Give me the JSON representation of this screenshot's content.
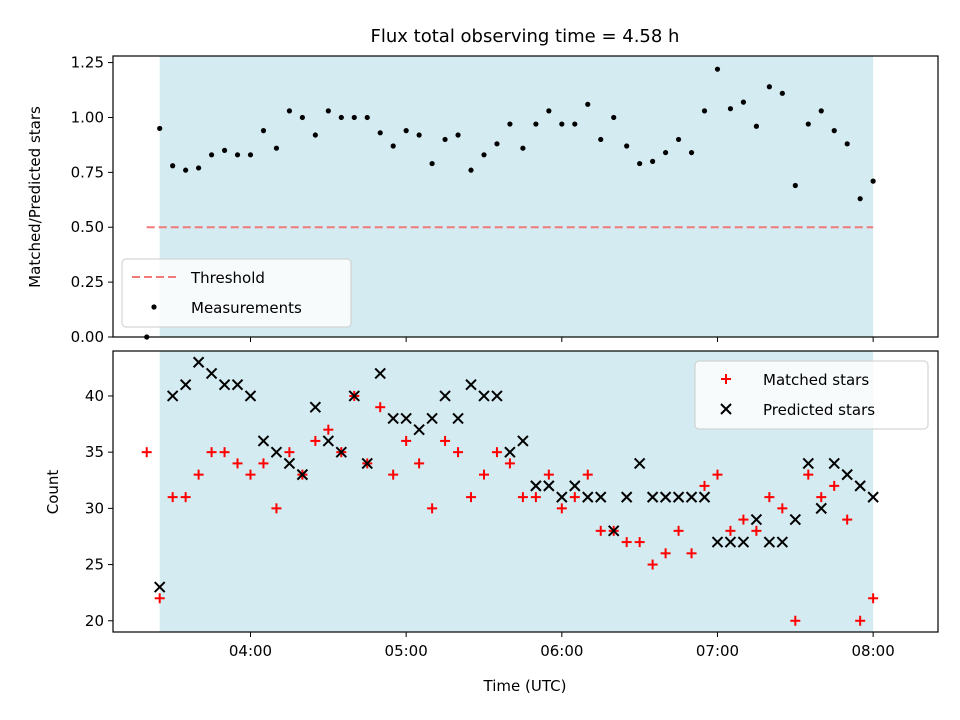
{
  "chart_data": [
    {
      "type": "scatter",
      "title": "Flux total observing time = 4.58 h",
      "ylabel": "Matched/Predicted stars",
      "xlabel": "",
      "ylim": [
        0,
        1.28
      ],
      "yticks": [
        "0.00",
        "0.25",
        "0.50",
        "0.75",
        "1.00",
        "1.25"
      ],
      "ytick_values": [
        0,
        0.25,
        0.5,
        0.75,
        1.0,
        1.25
      ],
      "observing_window": {
        "start": "03:25",
        "end": "08:00",
        "color": "#d4ebf1"
      },
      "threshold": {
        "name": "Threshold",
        "value": 0.5,
        "x_start": "03:20",
        "x_end": "08:00",
        "color": "#f07a7a"
      },
      "legend": {
        "position": "lower-left",
        "entries": [
          "Threshold",
          "Measurements"
        ]
      },
      "series": [
        {
          "name": "Measurements",
          "color": "#000000",
          "marker": "dot",
          "x": [
            "03:20",
            "03:25",
            "03:30",
            "03:35",
            "03:40",
            "03:45",
            "03:50",
            "03:55",
            "04:00",
            "04:05",
            "04:10",
            "04:15",
            "04:20",
            "04:25",
            "04:30",
            "04:35",
            "04:40",
            "04:45",
            "04:50",
            "04:55",
            "05:00",
            "05:05",
            "05:10",
            "05:15",
            "05:20",
            "05:25",
            "05:30",
            "05:35",
            "05:40",
            "05:45",
            "05:50",
            "05:55",
            "06:00",
            "06:05",
            "06:10",
            "06:15",
            "06:20",
            "06:25",
            "06:30",
            "06:35",
            "06:40",
            "06:45",
            "06:50",
            "06:55",
            "07:00",
            "07:05",
            "07:10",
            "07:15",
            "07:20",
            "07:25",
            "07:30",
            "07:35",
            "07:40",
            "07:45",
            "07:50",
            "07:55",
            "08:00"
          ],
          "y": [
            0.0,
            0.95,
            0.78,
            0.76,
            0.77,
            0.83,
            0.85,
            0.83,
            0.83,
            0.94,
            0.86,
            1.03,
            1.0,
            0.92,
            1.03,
            1.0,
            1.0,
            1.0,
            0.93,
            0.87,
            0.94,
            0.92,
            0.79,
            0.9,
            0.92,
            0.76,
            0.83,
            0.88,
            0.97,
            0.86,
            0.97,
            1.03,
            0.97,
            0.97,
            1.06,
            0.9,
            1.0,
            0.87,
            0.79,
            0.8,
            0.84,
            0.9,
            0.84,
            1.03,
            1.22,
            1.04,
            1.07,
            0.96,
            1.14,
            1.11,
            0.69,
            0.97,
            1.03,
            0.94,
            0.88,
            0.63,
            0.71
          ]
        }
      ]
    },
    {
      "type": "scatter",
      "title": "",
      "ylabel": "Count",
      "xlabel": "Time (UTC)",
      "ylim": [
        19,
        44
      ],
      "yticks": [
        "20",
        "25",
        "30",
        "35",
        "40"
      ],
      "ytick_values": [
        20,
        25,
        30,
        35,
        40
      ],
      "xlim": [
        "03:07",
        "08:25"
      ],
      "xticks": [
        "04:00",
        "05:00",
        "06:00",
        "07:00",
        "08:00"
      ],
      "observing_window": {
        "start": "03:25",
        "end": "08:00",
        "color": "#d4ebf1"
      },
      "legend": {
        "position": "top-right",
        "entries": [
          "Matched stars",
          "Predicted stars"
        ]
      },
      "x": [
        "03:20",
        "03:25",
        "03:30",
        "03:35",
        "03:40",
        "03:45",
        "03:50",
        "03:55",
        "04:00",
        "04:05",
        "04:10",
        "04:15",
        "04:20",
        "04:25",
        "04:30",
        "04:35",
        "04:40",
        "04:45",
        "04:50",
        "04:55",
        "05:00",
        "05:05",
        "05:10",
        "05:15",
        "05:20",
        "05:25",
        "05:30",
        "05:35",
        "05:40",
        "05:45",
        "05:50",
        "05:55",
        "06:00",
        "06:05",
        "06:10",
        "06:15",
        "06:20",
        "06:25",
        "06:30",
        "06:35",
        "06:40",
        "06:45",
        "06:50",
        "06:55",
        "07:00",
        "07:05",
        "07:10",
        "07:15",
        "07:20",
        "07:25",
        "07:30",
        "07:35",
        "07:40",
        "07:45",
        "07:50",
        "07:55",
        "08:00"
      ],
      "series": [
        {
          "name": "Matched stars",
          "color": "#ff0000",
          "marker": "plus",
          "y": [
            35,
            22,
            31,
            31,
            33,
            35,
            35,
            34,
            33,
            34,
            30,
            35,
            33,
            36,
            37,
            35,
            40,
            34,
            39,
            33,
            36,
            34,
            30,
            36,
            35,
            31,
            33,
            35,
            34,
            31,
            31,
            33,
            30,
            31,
            33,
            28,
            28,
            27,
            27,
            25,
            26,
            28,
            26,
            32,
            33,
            28,
            29,
            28,
            31,
            30,
            20,
            33,
            31,
            32,
            29,
            20,
            22
          ]
        },
        {
          "name": "Predicted stars",
          "color": "#000000",
          "marker": "x",
          "y": [
            null,
            23,
            40,
            41,
            43,
            42,
            41,
            41,
            40,
            36,
            35,
            34,
            33,
            39,
            36,
            35,
            40,
            34,
            42,
            38,
            38,
            37,
            38,
            40,
            38,
            41,
            40,
            40,
            35,
            36,
            32,
            32,
            31,
            32,
            31,
            31,
            28,
            31,
            34,
            31,
            31,
            31,
            31,
            31,
            27,
            27,
            27,
            29,
            27,
            27,
            29,
            34,
            30,
            34,
            33,
            32,
            31
          ]
        }
      ]
    }
  ]
}
